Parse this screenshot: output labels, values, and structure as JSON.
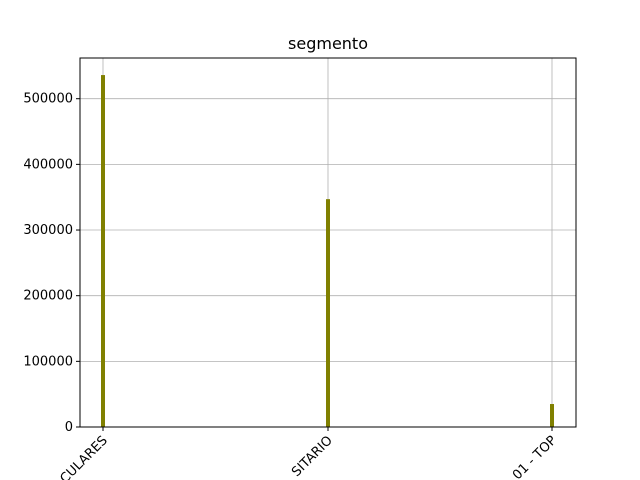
{
  "chart_data": {
    "type": "bar",
    "title": "segmento",
    "xlabel": "",
    "ylabel": "",
    "categories": [
      "CULARES",
      "SITARIO",
      "01 - TOP"
    ],
    "values": [
      536000,
      347000,
      35000
    ],
    "ylim": [
      0,
      562000
    ],
    "yticks": [
      0,
      100000,
      200000,
      300000,
      400000,
      500000
    ],
    "ytick_labels": [
      "0",
      "100000",
      "200000",
      "300000",
      "400000",
      "500000"
    ],
    "bar_color": "#808000",
    "grid": true,
    "legend": "none"
  }
}
